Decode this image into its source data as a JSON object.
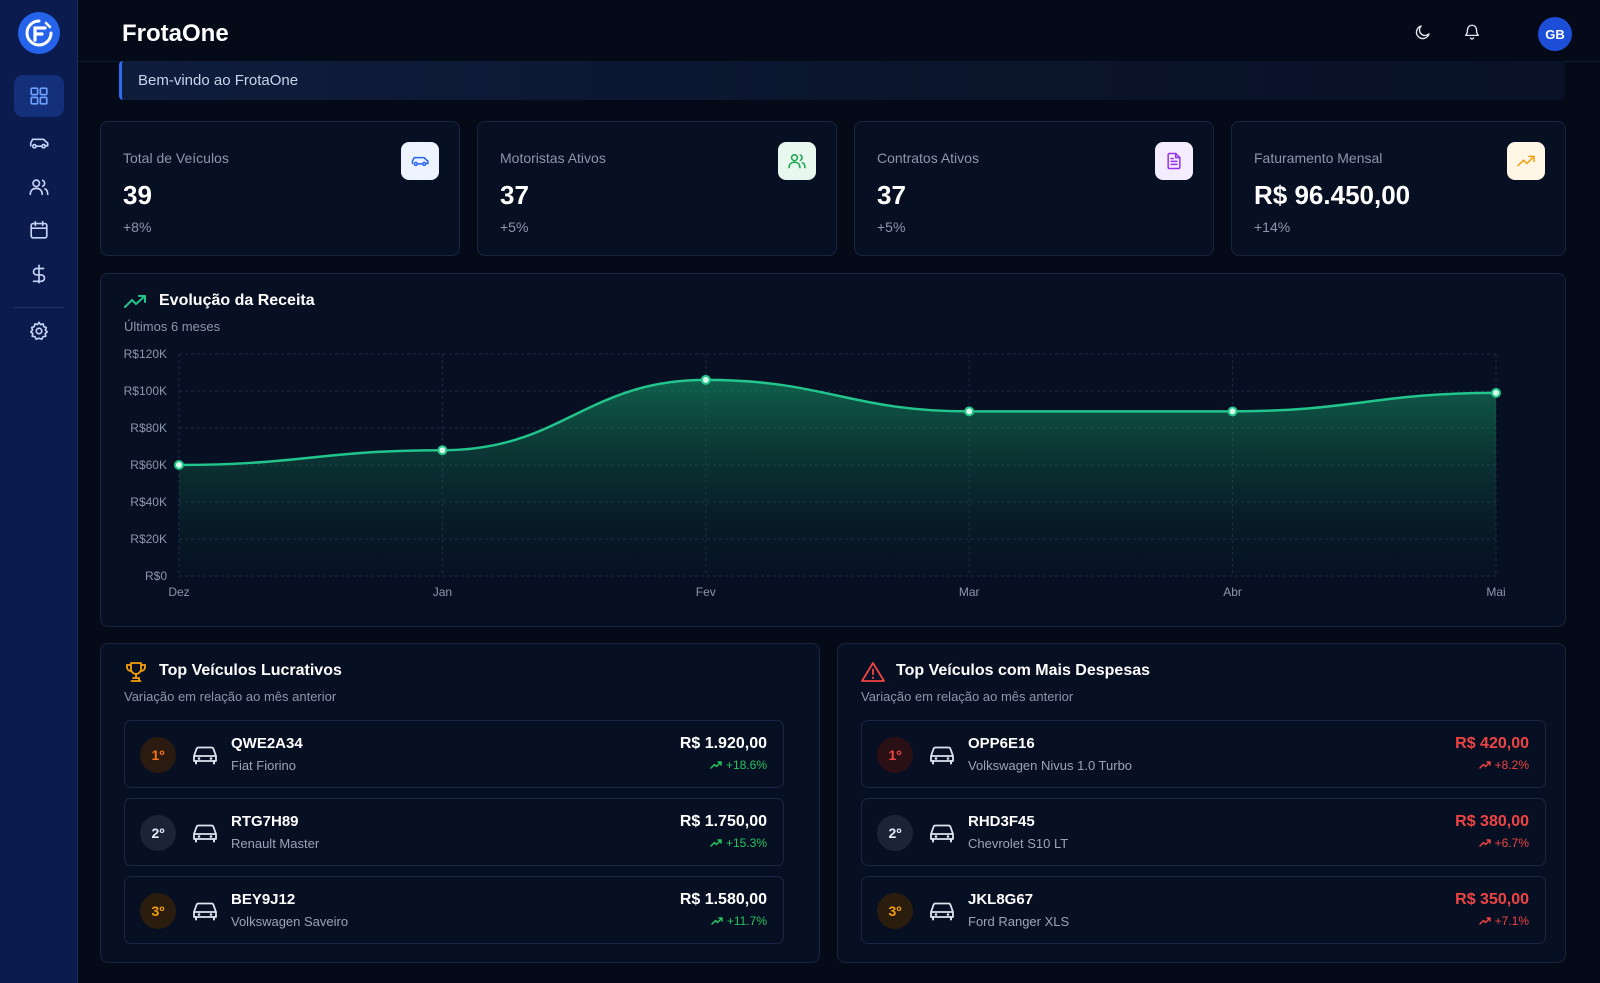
{
  "app": {
    "title": "FrotaOne",
    "avatar_initials": "GB"
  },
  "sidebar": {
    "items": [
      {
        "name": "dashboard",
        "icon": "grid-icon",
        "active": true
      },
      {
        "name": "vehicles",
        "icon": "car-icon",
        "active": false
      },
      {
        "name": "drivers",
        "icon": "users-icon",
        "active": false
      },
      {
        "name": "calendar",
        "icon": "calendar-icon",
        "active": false
      },
      {
        "name": "finance",
        "icon": "dollar-icon",
        "active": false
      },
      {
        "name": "settings",
        "icon": "gear-icon",
        "active": false
      }
    ]
  },
  "topbar": {
    "icons": [
      "moon-icon",
      "bell-icon"
    ]
  },
  "welcome": "Bem-vindo ao FrotaOne",
  "stats": [
    {
      "label": "Total de Veículos",
      "value": "39",
      "change": "+8%",
      "icon": "car-icon",
      "icon_bg": "#eef4ff",
      "icon_color": "#2563eb"
    },
    {
      "label": "Motoristas Ativos",
      "value": "37",
      "change": "+5%",
      "icon": "users-icon",
      "icon_bg": "#e8f8ee",
      "icon_color": "#16a34a"
    },
    {
      "label": "Contratos Ativos",
      "value": "37",
      "change": "+5%",
      "icon": "document-icon",
      "icon_bg": "#f4ecff",
      "icon_color": "#9333ea"
    },
    {
      "label": "Faturamento Mensal",
      "value": "R$ 96.450,00",
      "change": "+14%",
      "icon": "trending-up-icon",
      "icon_bg": "#fff6e6",
      "icon_color": "#f59e0b"
    }
  ],
  "revenue": {
    "title": "Evolução da Receita",
    "subtitle": "Últimos 6 meses"
  },
  "chart_data": {
    "type": "area",
    "categories": [
      "Dez",
      "Jan",
      "Fev",
      "Mar",
      "Abr",
      "Mai"
    ],
    "values": [
      60000,
      68000,
      106000,
      89000,
      89000,
      99000
    ],
    "yticks": [
      "R$0",
      "R$20K",
      "R$40K",
      "R$60K",
      "R$80K",
      "R$100K",
      "R$120K"
    ],
    "ylim": [
      0,
      120000
    ],
    "grid": true,
    "color": "#22c58b"
  },
  "top_profit": {
    "title": "Top Veículos Lucrativos",
    "subtitle": "Variação em relação ao mês anterior",
    "icon": "trophy-icon",
    "items": [
      {
        "rank": "1º",
        "plate": "QWE2A34",
        "model": "Fiat Fiorino",
        "amount": "R$ 1.920,00",
        "change": "+18.6%"
      },
      {
        "rank": "2º",
        "plate": "RTG7H89",
        "model": "Renault Master",
        "amount": "R$ 1.750,00",
        "change": "+15.3%"
      },
      {
        "rank": "3º",
        "plate": "BEY9J12",
        "model": "Volkswagen Saveiro",
        "amount": "R$ 1.580,00",
        "change": "+11.7%"
      }
    ]
  },
  "top_expense": {
    "title": "Top Veículos com Mais Despesas",
    "subtitle": "Variação em relação ao mês anterior",
    "icon": "warning-icon",
    "items": [
      {
        "rank": "1º",
        "plate": "OPP6E16",
        "model": "Volkswagen Nivus 1.0 Turbo",
        "amount": "R$ 420,00",
        "change": "+8.2%"
      },
      {
        "rank": "2º",
        "plate": "RHD3F45",
        "model": "Chevrolet S10 LT",
        "amount": "R$ 380,00",
        "change": "+6.7%"
      },
      {
        "rank": "3º",
        "plate": "JKL8G67",
        "model": "Ford Ranger XLS",
        "amount": "R$ 350,00",
        "change": "+7.1%"
      }
    ]
  },
  "colors": {
    "accent": "#2563eb",
    "profit": "#22c55e",
    "expense": "#ef4444",
    "rank1": "#f97316",
    "rank3": "#f59e0b"
  }
}
